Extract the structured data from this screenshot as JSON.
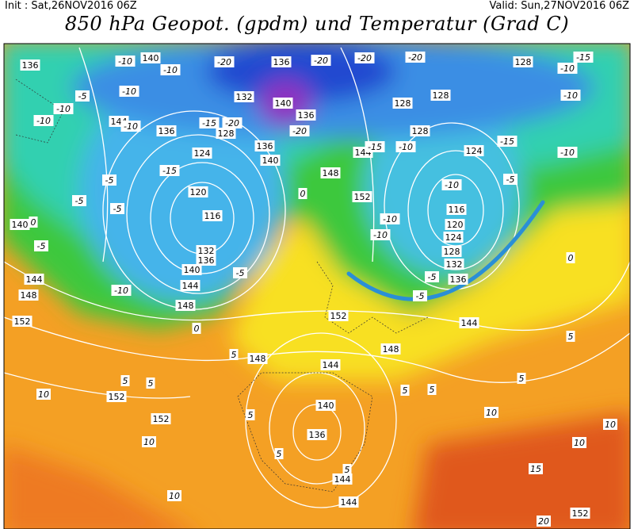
{
  "header": {
    "init": "Init : Sat,26NOV2016 06Z",
    "valid": "Valid: Sun,27NOV2016 06Z",
    "title": "850 hPa Geopot. (gpdm) und Temperatur (Grad C)"
  },
  "map": {
    "geopotential_labels": [
      136,
      140,
      136,
      128,
      132,
      140,
      136,
      128,
      128,
      144,
      136,
      128,
      128,
      136,
      144,
      124,
      124,
      140,
      148,
      120,
      152,
      116,
      116,
      120,
      124,
      128,
      132,
      136,
      132,
      140,
      136,
      144,
      148,
      152,
      152,
      144,
      148,
      140,
      144,
      148,
      148,
      144,
      152,
      152,
      140,
      136,
      144,
      144,
      152
    ],
    "temperature_labels": [
      -10,
      -10,
      -20,
      -20,
      -20,
      -20,
      -10,
      -10,
      -10,
      -5,
      -10,
      -15,
      -5,
      -5,
      -5,
      0,
      -5,
      -10,
      -5,
      0,
      -20,
      -15,
      -20,
      -15,
      -10,
      -15,
      -10,
      -10,
      -5,
      -10,
      -10,
      0,
      -5,
      -5,
      0,
      5,
      5,
      5,
      10,
      10,
      5,
      5,
      5,
      10,
      15,
      10,
      10,
      10,
      20,
      5,
      5,
      5,
      5,
      -10,
      -10,
      -15
    ]
  }
}
